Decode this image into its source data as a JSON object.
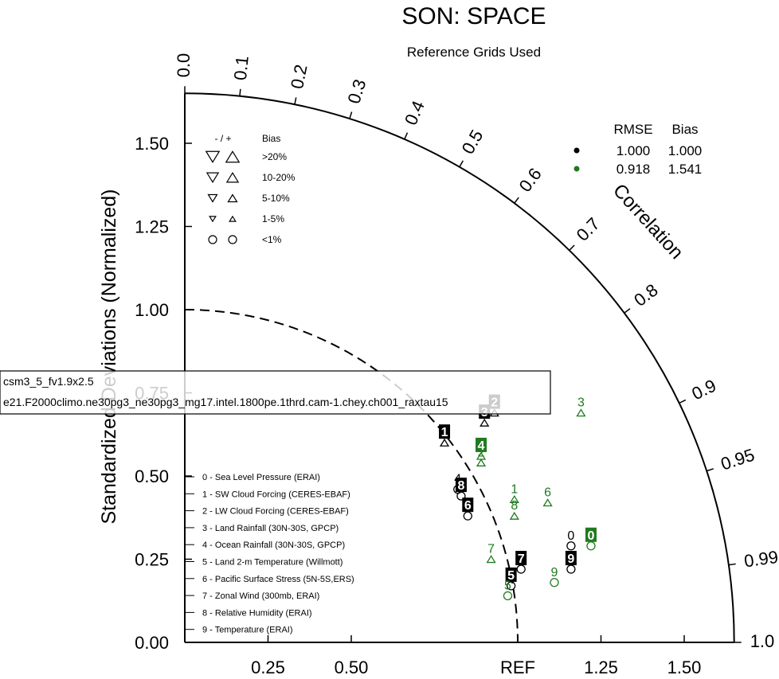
{
  "title": "SON: SPACE",
  "subtitle": "Reference Grids Used",
  "chart_data": {
    "type": "taylor",
    "y_axis_label": "Standardized Deviations (Normalized)",
    "x_ref_label": "REF",
    "arc_label": "Correlation",
    "std_range": [
      0,
      1.65
    ],
    "x_ticks": [
      "0.25",
      "0.50",
      "REF",
      "1.25",
      "1.50"
    ],
    "x_tick_values": [
      0.25,
      0.5,
      1.0,
      1.25,
      1.5
    ],
    "y_ticks": [
      "0.00",
      "0.25",
      "0.50",
      "0.75",
      "1.00",
      "1.25",
      "1.50"
    ],
    "y_tick_values": [
      0,
      0.25,
      0.5,
      0.75,
      1.0,
      1.25,
      1.5
    ],
    "corr_labels": [
      {
        "text": "0.0",
        "value": 0.0
      },
      {
        "text": "0.1",
        "value": 0.1
      },
      {
        "text": "0.2",
        "value": 0.2
      },
      {
        "text": "0.3",
        "value": 0.3
      },
      {
        "text": "0.4",
        "value": 0.4
      },
      {
        "text": "0.5",
        "value": 0.5
      },
      {
        "text": "0.6",
        "value": 0.6
      },
      {
        "text": "0.7",
        "value": 0.7
      },
      {
        "text": "0.8",
        "value": 0.8
      },
      {
        "text": "0.9",
        "value": 0.9
      },
      {
        "text": "0.95",
        "value": 0.95
      },
      {
        "text": "0.99",
        "value": 0.99
      },
      {
        "text": "1.0",
        "value": 1.0
      }
    ],
    "bias_legend": {
      "header_sign": "- / +",
      "header_bias": "Bias",
      "rows": [
        {
          "label": ">20%",
          "size": 15,
          "marker": "triangle"
        },
        {
          "label": "10-20%",
          "size": 13,
          "marker": "triangle"
        },
        {
          "label": "5-10%",
          "size": 10,
          "marker": "triangle"
        },
        {
          "label": "1-5%",
          "size": 7,
          "marker": "triangle"
        },
        {
          "label": "<1%",
          "size": 10,
          "marker": "circle"
        }
      ]
    },
    "stats_legend": {
      "header_rmse": "RMSE",
      "header_bias": "Bias",
      "rows": [
        {
          "color": "#000000",
          "rmse": "1.000",
          "bias": "1.000"
        },
        {
          "color": "#1f7a1f",
          "rmse": "0.918",
          "bias": "1.541"
        }
      ]
    },
    "case_names": [
      "csm3_5_fv1.9x2.5",
      "e21.F2000climo.ne30pg3_ne30pg3_mg17.intel.1800pe.1thrd.cam-1.chey.ch001_raxtau15"
    ],
    "variables": [
      "0 - Sea Level Pressure (ERAI)",
      "1 - SW Cloud Forcing (CERES-EBAF)",
      "2 - LW Cloud Forcing (CERES-EBAF)",
      "3 - Land Rainfall (30N-30S, GPCP)",
      "4 - Ocean Rainfall (30N-30S, GPCP)",
      "5 - Land 2-m Temperature (Willmott)",
      "6 - Pacific Surface Stress (5N-5S,ERS)",
      "7 - Zonal Wind (300mb, ERAI)",
      "8 - Relative Humidity (ERAI)",
      "9 - Temperature (ERAI)"
    ],
    "series": [
      {
        "color": "#000000",
        "points": [
          {
            "label": "0",
            "x": 1.16,
            "y": 0.29,
            "marker": "circle",
            "box": false
          },
          {
            "label": "1",
            "x": 0.78,
            "y": 0.6,
            "marker": "triangle-up",
            "box": true
          },
          {
            "label": "2",
            "x": 0.93,
            "y": 0.69,
            "marker": "triangle-up",
            "box": true
          },
          {
            "label": "3",
            "x": 0.9,
            "y": 0.66,
            "marker": "triangle-up",
            "box": true
          },
          {
            "label": "4",
            "x": 0.82,
            "y": 0.46,
            "marker": "circle",
            "box": false
          },
          {
            "label": "5",
            "x": 0.98,
            "y": 0.17,
            "marker": "circle",
            "box": true
          },
          {
            "label": "6",
            "x": 0.85,
            "y": 0.38,
            "marker": "circle",
            "box": true
          },
          {
            "label": "7",
            "x": 1.01,
            "y": 0.22,
            "marker": "circle",
            "box": true
          },
          {
            "label": "8",
            "x": 0.83,
            "y": 0.44,
            "marker": "circle",
            "box": true
          },
          {
            "label": "9",
            "x": 1.16,
            "y": 0.22,
            "marker": "circle",
            "box": true
          }
        ]
      },
      {
        "color": "#1f7a1f",
        "points": [
          {
            "label": "0",
            "x": 1.22,
            "y": 0.29,
            "marker": "circle",
            "box": true
          },
          {
            "label": "1",
            "x": 0.99,
            "y": 0.43,
            "marker": "triangle-up",
            "box": false
          },
          {
            "label": "2",
            "x": 0.89,
            "y": 0.54,
            "marker": "triangle-up",
            "box": false
          },
          {
            "label": "3",
            "x": 1.19,
            "y": 0.69,
            "marker": "triangle-up",
            "box": false
          },
          {
            "label": "4",
            "x": 0.89,
            "y": 0.56,
            "marker": "triangle-up",
            "box": true
          },
          {
            "label": "5",
            "x": 0.97,
            "y": 0.14,
            "marker": "circle",
            "box": false
          },
          {
            "label": "6",
            "x": 1.09,
            "y": 0.42,
            "marker": "triangle-up",
            "box": false
          },
          {
            "label": "7",
            "x": 0.92,
            "y": 0.25,
            "marker": "triangle-up",
            "box": false
          },
          {
            "label": "8",
            "x": 0.99,
            "y": 0.38,
            "marker": "triangle-up",
            "box": false
          },
          {
            "label": "9",
            "x": 1.11,
            "y": 0.18,
            "marker": "circle",
            "box": false
          }
        ]
      }
    ]
  }
}
